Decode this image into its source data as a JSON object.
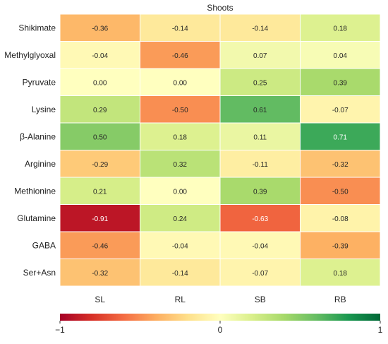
{
  "chart_data": {
    "type": "heatmap",
    "title": "Shoots",
    "rows": [
      "Shikimate",
      "Methylglyoxal",
      "Pyruvate",
      "Lysine",
      "β-Alanine",
      "Arginine",
      "Methionine",
      "Glutamine",
      "GABA",
      "Ser+Asn"
    ],
    "columns": [
      "SL",
      "RL",
      "SB",
      "RB"
    ],
    "values": [
      [
        -0.36,
        -0.14,
        -0.14,
        0.18
      ],
      [
        -0.04,
        -0.46,
        0.07,
        0.04
      ],
      [
        0.0,
        0.0,
        0.25,
        0.39
      ],
      [
        0.29,
        -0.5,
        0.61,
        -0.07
      ],
      [
        0.5,
        0.18,
        0.11,
        0.71
      ],
      [
        -0.29,
        0.32,
        -0.11,
        -0.32
      ],
      [
        0.21,
        0.0,
        0.39,
        -0.5
      ],
      [
        -0.91,
        0.24,
        -0.63,
        -0.08
      ],
      [
        -0.46,
        -0.04,
        -0.04,
        -0.39
      ],
      [
        -0.32,
        -0.14,
        -0.07,
        0.18
      ]
    ],
    "colorbar": {
      "min": -1,
      "max": 1,
      "ticks": [
        -1,
        0,
        1
      ],
      "tick_labels": [
        "−1",
        "0",
        "1"
      ],
      "colormap": "RdYlGn",
      "orientation": "horizontal",
      "placement": "bottom"
    },
    "grid": false
  }
}
